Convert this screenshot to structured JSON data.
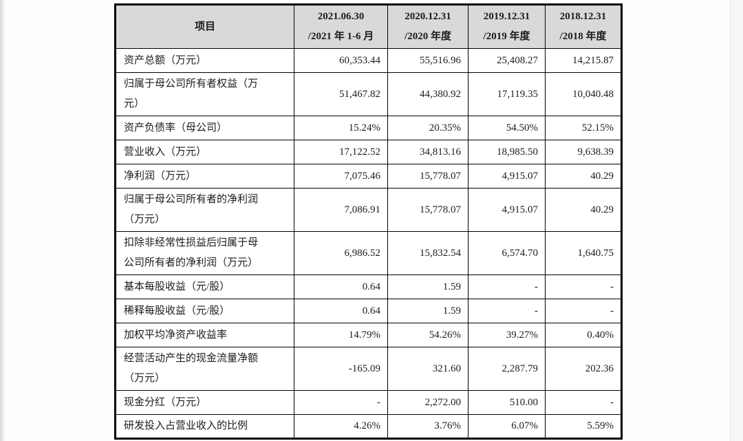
{
  "table": {
    "columns": [
      {
        "label": "项目"
      },
      {
        "label": "2021.06.30\n/2021 年 1-6 月"
      },
      {
        "label": "2020.12.31\n/2020 年度"
      },
      {
        "label": "2019.12.31\n/2019 年度"
      },
      {
        "label": "2018.12.31\n/2018 年度"
      }
    ],
    "rows": [
      {
        "label": "资产总额（万元）",
        "values": [
          "60,353.44",
          "55,516.96",
          "25,408.27",
          "14,215.87"
        ]
      },
      {
        "label": "归属于母公司所有者权益（万\n元）",
        "values": [
          "51,467.82",
          "44,380.92",
          "17,119.35",
          "10,040.48"
        ]
      },
      {
        "label": "资产负债率（母公司）",
        "values": [
          "15.24%",
          "20.35%",
          "54.50%",
          "52.15%"
        ]
      },
      {
        "label": "营业收入（万元）",
        "values": [
          "17,122.52",
          "34,813.16",
          "18,985.50",
          "9,638.39"
        ]
      },
      {
        "label": "净利润（万元）",
        "values": [
          "7,075.46",
          "15,778.07",
          "4,915.07",
          "40.29"
        ]
      },
      {
        "label": "归属于母公司所有者的净利润\n（万元）",
        "values": [
          "7,086.91",
          "15,778.07",
          "4,915.07",
          "40.29"
        ]
      },
      {
        "label": "扣除非经常性损益后归属于母\n公司所有者的净利润（万元）",
        "values": [
          "6,986.52",
          "15,832.54",
          "6,574.70",
          "1,640.75"
        ]
      },
      {
        "label": "基本每股收益（元/股）",
        "values": [
          "0.64",
          "1.59",
          "-",
          "-"
        ]
      },
      {
        "label": "稀释每股收益（元/股）",
        "values": [
          "0.64",
          "1.59",
          "-",
          "-"
        ]
      },
      {
        "label": "加权平均净资产收益率",
        "values": [
          "14.79%",
          "54.26%",
          "39.27%",
          "0.40%"
        ]
      },
      {
        "label": "经营活动产生的现金流量净额\n（万元）",
        "values": [
          "-165.09",
          "321.60",
          "2,287.79",
          "202.36"
        ]
      },
      {
        "label": "现金分红（万元）",
        "values": [
          "-",
          "2,272.00",
          "510.00",
          "-"
        ]
      },
      {
        "label": "研发投入占营业收入的比例",
        "values": [
          "4.26%",
          "3.76%",
          "6.07%",
          "5.59%"
        ]
      }
    ]
  },
  "colors": {
    "header_bg": "#d9d9d9",
    "border": "#000000",
    "text": "#1c1c1c",
    "page_bg": "#fefefe"
  }
}
